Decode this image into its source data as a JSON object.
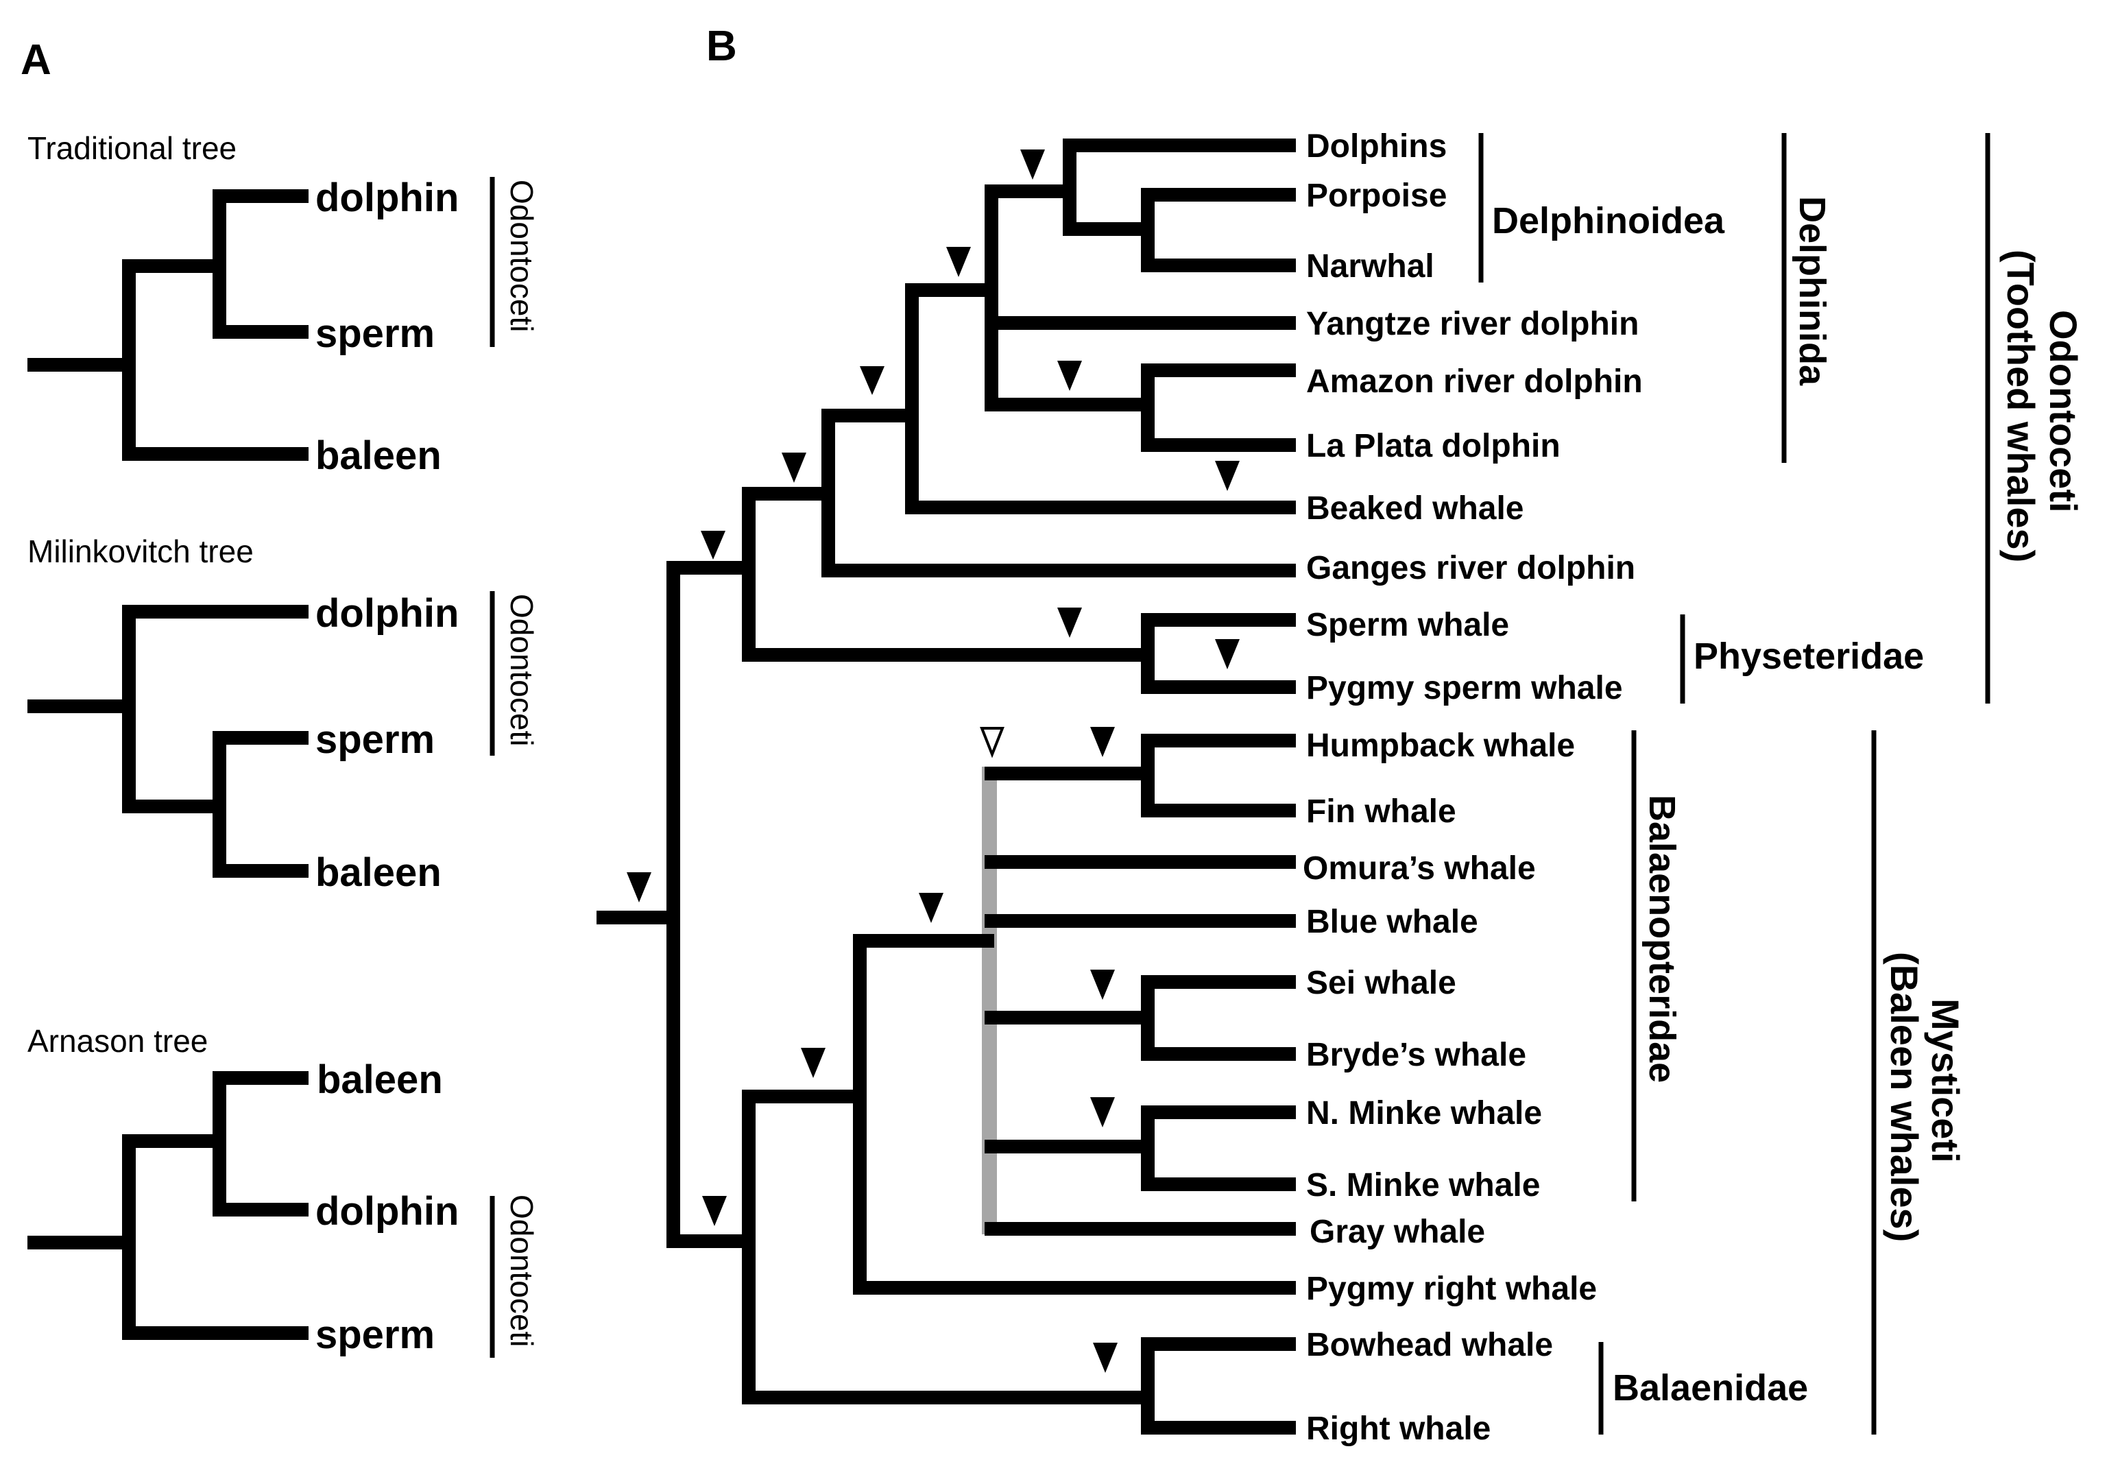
{
  "panel_a": {
    "label": "A",
    "trees": [
      {
        "title": "Traditional tree",
        "tips": [
          "dolphin",
          "sperm",
          "baleen"
        ],
        "clade_label": "Odontoceti"
      },
      {
        "title": "Milinkovitch tree",
        "tips": [
          "dolphin",
          "sperm",
          "baleen"
        ],
        "clade_label": "Odontoceti"
      },
      {
        "title": "Arnason tree",
        "tips": [
          "baleen",
          "dolphin",
          "sperm"
        ],
        "clade_label": "Odontoceti"
      }
    ]
  },
  "panel_b": {
    "label": "B",
    "taxa": [
      "Dolphins",
      "Porpoise",
      "Narwhal",
      "Yangtze river dolphin",
      "Amazon river dolphin",
      "La Plata dolphin",
      "Beaked whale",
      "Ganges river dolphin",
      "Sperm whale",
      "Pygmy sperm whale",
      "Humpback whale",
      "Fin whale",
      "Omura’s whale",
      "Blue whale",
      "Sei whale",
      "Bryde’s whale",
      "N. Minke whale",
      "S. Minke whale",
      "Gray whale",
      "Pygmy right whale",
      "Bowhead whale",
      "Right whale"
    ],
    "clades": {
      "delphinoidea": "Delphinoidea",
      "delphinida": "Delphinida",
      "physeteridae": "Physeteridae",
      "balaenopteridae": "Balaenopteridae",
      "balaenidae": "Balaenidae",
      "odontoceti": [
        "Odontoceti",
        "(Toothed whales)"
      ],
      "mysticeti": [
        "Mysticeti",
        "(Baleen whales)"
      ]
    }
  },
  "colors": {
    "line": "#000000",
    "unresolved_bar": "#a6a6a6",
    "background": "#ffffff"
  }
}
